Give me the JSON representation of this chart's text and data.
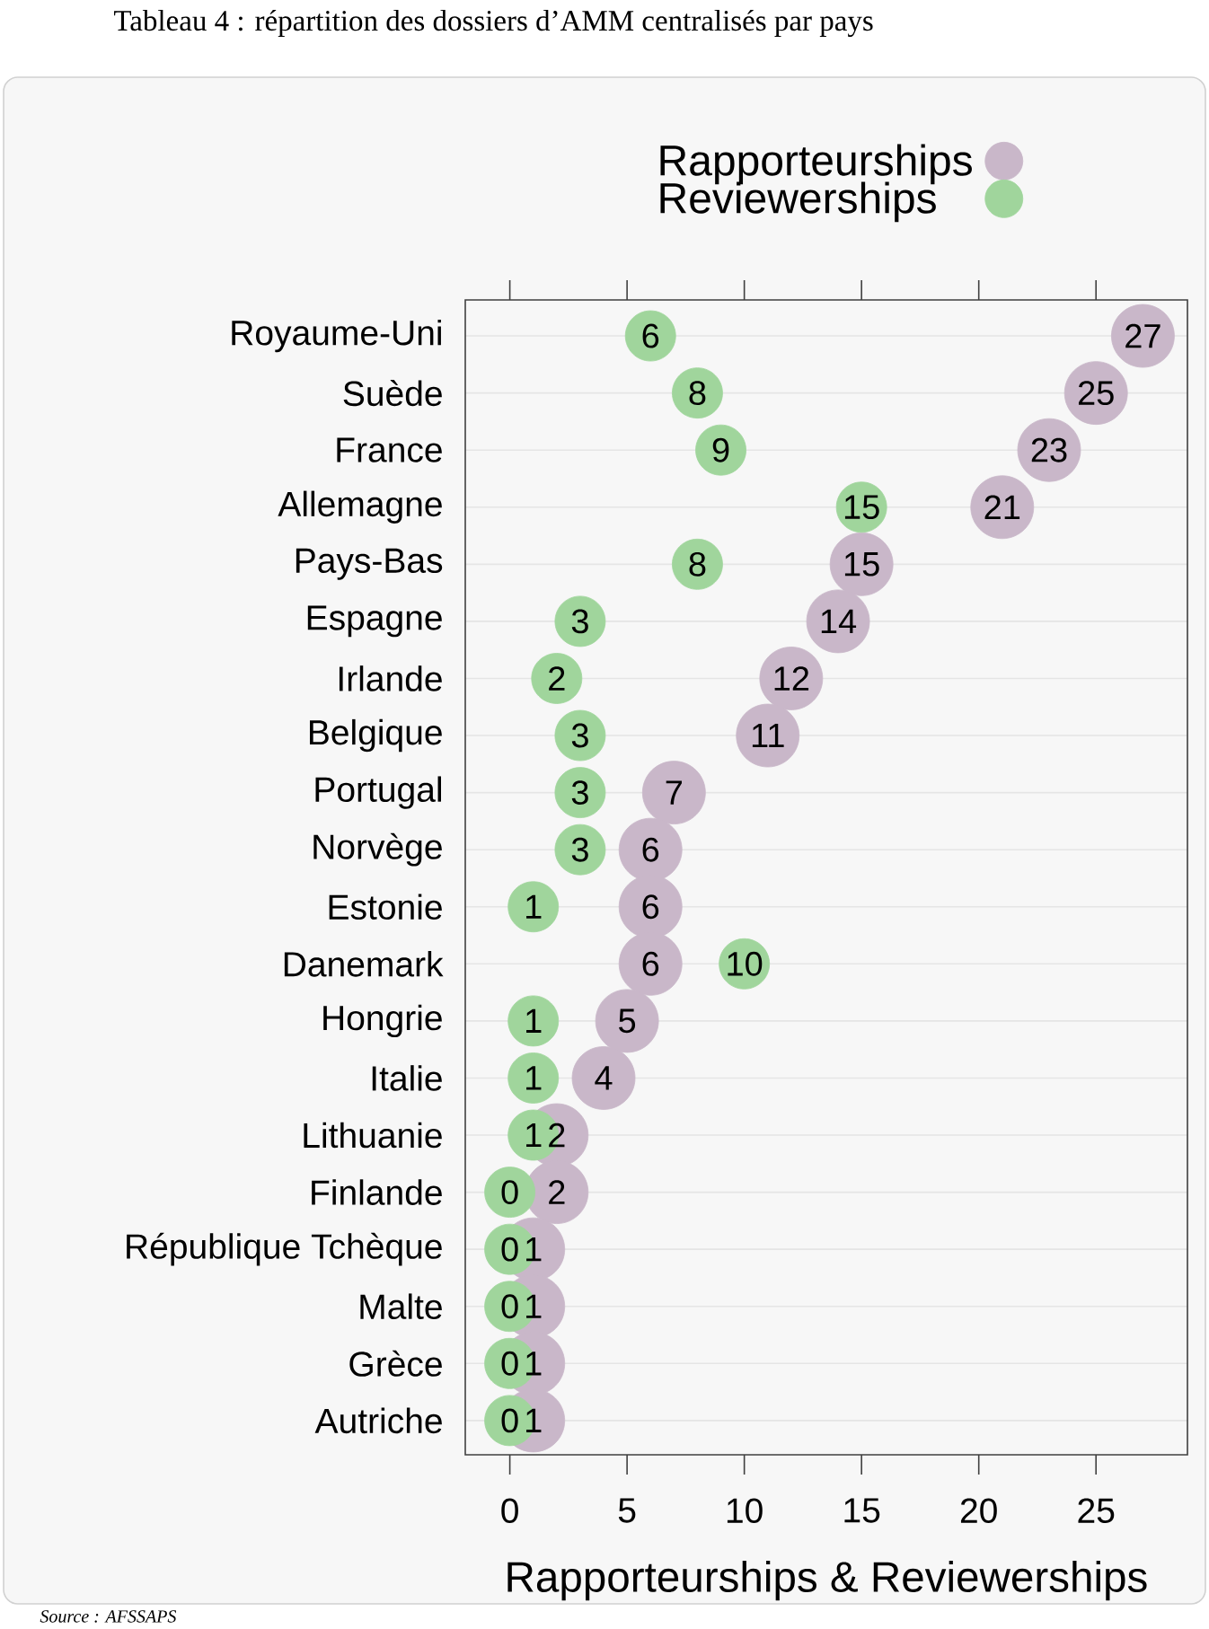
{
  "chart_data": {
    "type": "scatter",
    "orientation": "horizontal",
    "title": "Tableau 4 : répartition des dossiers d’AMM centralisés par pays",
    "xlabel": "Rapporteurships & Reviewerships",
    "annotations": [
      "Source : AFSSAPS"
    ],
    "categories": [
      "Royaume-Uni",
      "Suède",
      "France",
      "Allemagne",
      "Pays-Bas",
      "Espagne",
      "Irlande",
      "Belgique",
      "Portugal",
      "Norvège",
      "Estonie",
      "Danemark",
      "Hongrie",
      "Italie",
      "Lithuanie",
      "Finlande",
      "République Tchèque",
      "Malte",
      "Grèce",
      "Autriche"
    ],
    "series": [
      {
        "name": "Rapporteurships",
        "color": "#c9b7c9",
        "values": [
          27,
          25,
          23,
          21,
          15,
          14,
          12,
          11,
          7,
          6,
          6,
          6,
          5,
          4,
          2,
          2,
          1,
          1,
          1,
          1
        ]
      },
      {
        "name": "Reviewerships",
        "color": "#a0d59c",
        "values": [
          6,
          8,
          9,
          15,
          8,
          3,
          2,
          3,
          3,
          3,
          1,
          10,
          1,
          1,
          1,
          0,
          0,
          0,
          0,
          0
        ]
      }
    ],
    "xlim": [
      -1.9,
      28.9
    ],
    "xticks": [
      0,
      5,
      10,
      15,
      20,
      25
    ],
    "grid": "y",
    "legend": "top right",
    "marker": "circle",
    "data_labels": true
  }
}
